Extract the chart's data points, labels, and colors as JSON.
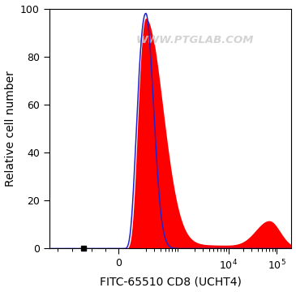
{
  "ylabel": "Relative cell number",
  "xlabel": "FITC-65510 CD8 (UCHT4)",
  "watermark": "WWW.PTGLAB.COM",
  "ylim": [
    0,
    100
  ],
  "red_fill_color": "#FF0000",
  "blue_line_color": "#2222CC",
  "background_color": "#FFFFFF",
  "axis_bg_color": "#FFFFFF",
  "label_fontsize": 10,
  "tick_fontsize": 9,
  "watermark_color": "#cccccc",
  "watermark_alpha": 0.85,
  "watermark_fontsize": 9.5
}
